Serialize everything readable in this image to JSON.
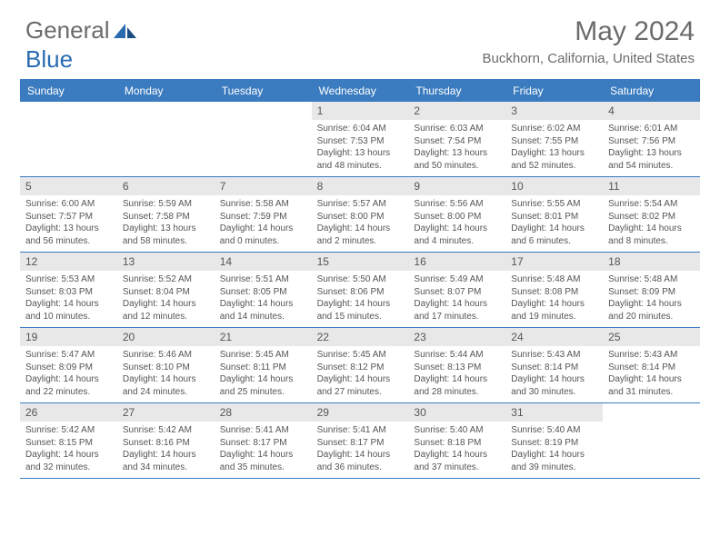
{
  "logo": {
    "text1": "General",
    "text2": "Blue"
  },
  "title": "May 2024",
  "location": "Buckhorn, California, United States",
  "dayHeaders": [
    "Sunday",
    "Monday",
    "Tuesday",
    "Wednesday",
    "Thursday",
    "Friday",
    "Saturday"
  ],
  "colors": {
    "headerBg": "#3b7bbf",
    "headerText": "#ffffff",
    "dayNumBg": "#e8e8e8",
    "text": "#555555",
    "border": "#3b7bbf"
  },
  "weeks": [
    [
      null,
      null,
      null,
      {
        "n": "1",
        "sunrise": "6:04 AM",
        "sunset": "7:53 PM",
        "daylight": "13 hours and 48 minutes."
      },
      {
        "n": "2",
        "sunrise": "6:03 AM",
        "sunset": "7:54 PM",
        "daylight": "13 hours and 50 minutes."
      },
      {
        "n": "3",
        "sunrise": "6:02 AM",
        "sunset": "7:55 PM",
        "daylight": "13 hours and 52 minutes."
      },
      {
        "n": "4",
        "sunrise": "6:01 AM",
        "sunset": "7:56 PM",
        "daylight": "13 hours and 54 minutes."
      }
    ],
    [
      {
        "n": "5",
        "sunrise": "6:00 AM",
        "sunset": "7:57 PM",
        "daylight": "13 hours and 56 minutes."
      },
      {
        "n": "6",
        "sunrise": "5:59 AM",
        "sunset": "7:58 PM",
        "daylight": "13 hours and 58 minutes."
      },
      {
        "n": "7",
        "sunrise": "5:58 AM",
        "sunset": "7:59 PM",
        "daylight": "14 hours and 0 minutes."
      },
      {
        "n": "8",
        "sunrise": "5:57 AM",
        "sunset": "8:00 PM",
        "daylight": "14 hours and 2 minutes."
      },
      {
        "n": "9",
        "sunrise": "5:56 AM",
        "sunset": "8:00 PM",
        "daylight": "14 hours and 4 minutes."
      },
      {
        "n": "10",
        "sunrise": "5:55 AM",
        "sunset": "8:01 PM",
        "daylight": "14 hours and 6 minutes."
      },
      {
        "n": "11",
        "sunrise": "5:54 AM",
        "sunset": "8:02 PM",
        "daylight": "14 hours and 8 minutes."
      }
    ],
    [
      {
        "n": "12",
        "sunrise": "5:53 AM",
        "sunset": "8:03 PM",
        "daylight": "14 hours and 10 minutes."
      },
      {
        "n": "13",
        "sunrise": "5:52 AM",
        "sunset": "8:04 PM",
        "daylight": "14 hours and 12 minutes."
      },
      {
        "n": "14",
        "sunrise": "5:51 AM",
        "sunset": "8:05 PM",
        "daylight": "14 hours and 14 minutes."
      },
      {
        "n": "15",
        "sunrise": "5:50 AM",
        "sunset": "8:06 PM",
        "daylight": "14 hours and 15 minutes."
      },
      {
        "n": "16",
        "sunrise": "5:49 AM",
        "sunset": "8:07 PM",
        "daylight": "14 hours and 17 minutes."
      },
      {
        "n": "17",
        "sunrise": "5:48 AM",
        "sunset": "8:08 PM",
        "daylight": "14 hours and 19 minutes."
      },
      {
        "n": "18",
        "sunrise": "5:48 AM",
        "sunset": "8:09 PM",
        "daylight": "14 hours and 20 minutes."
      }
    ],
    [
      {
        "n": "19",
        "sunrise": "5:47 AM",
        "sunset": "8:09 PM",
        "daylight": "14 hours and 22 minutes."
      },
      {
        "n": "20",
        "sunrise": "5:46 AM",
        "sunset": "8:10 PM",
        "daylight": "14 hours and 24 minutes."
      },
      {
        "n": "21",
        "sunrise": "5:45 AM",
        "sunset": "8:11 PM",
        "daylight": "14 hours and 25 minutes."
      },
      {
        "n": "22",
        "sunrise": "5:45 AM",
        "sunset": "8:12 PM",
        "daylight": "14 hours and 27 minutes."
      },
      {
        "n": "23",
        "sunrise": "5:44 AM",
        "sunset": "8:13 PM",
        "daylight": "14 hours and 28 minutes."
      },
      {
        "n": "24",
        "sunrise": "5:43 AM",
        "sunset": "8:14 PM",
        "daylight": "14 hours and 30 minutes."
      },
      {
        "n": "25",
        "sunrise": "5:43 AM",
        "sunset": "8:14 PM",
        "daylight": "14 hours and 31 minutes."
      }
    ],
    [
      {
        "n": "26",
        "sunrise": "5:42 AM",
        "sunset": "8:15 PM",
        "daylight": "14 hours and 32 minutes."
      },
      {
        "n": "27",
        "sunrise": "5:42 AM",
        "sunset": "8:16 PM",
        "daylight": "14 hours and 34 minutes."
      },
      {
        "n": "28",
        "sunrise": "5:41 AM",
        "sunset": "8:17 PM",
        "daylight": "14 hours and 35 minutes."
      },
      {
        "n": "29",
        "sunrise": "5:41 AM",
        "sunset": "8:17 PM",
        "daylight": "14 hours and 36 minutes."
      },
      {
        "n": "30",
        "sunrise": "5:40 AM",
        "sunset": "8:18 PM",
        "daylight": "14 hours and 37 minutes."
      },
      {
        "n": "31",
        "sunrise": "5:40 AM",
        "sunset": "8:19 PM",
        "daylight": "14 hours and 39 minutes."
      },
      null
    ]
  ]
}
